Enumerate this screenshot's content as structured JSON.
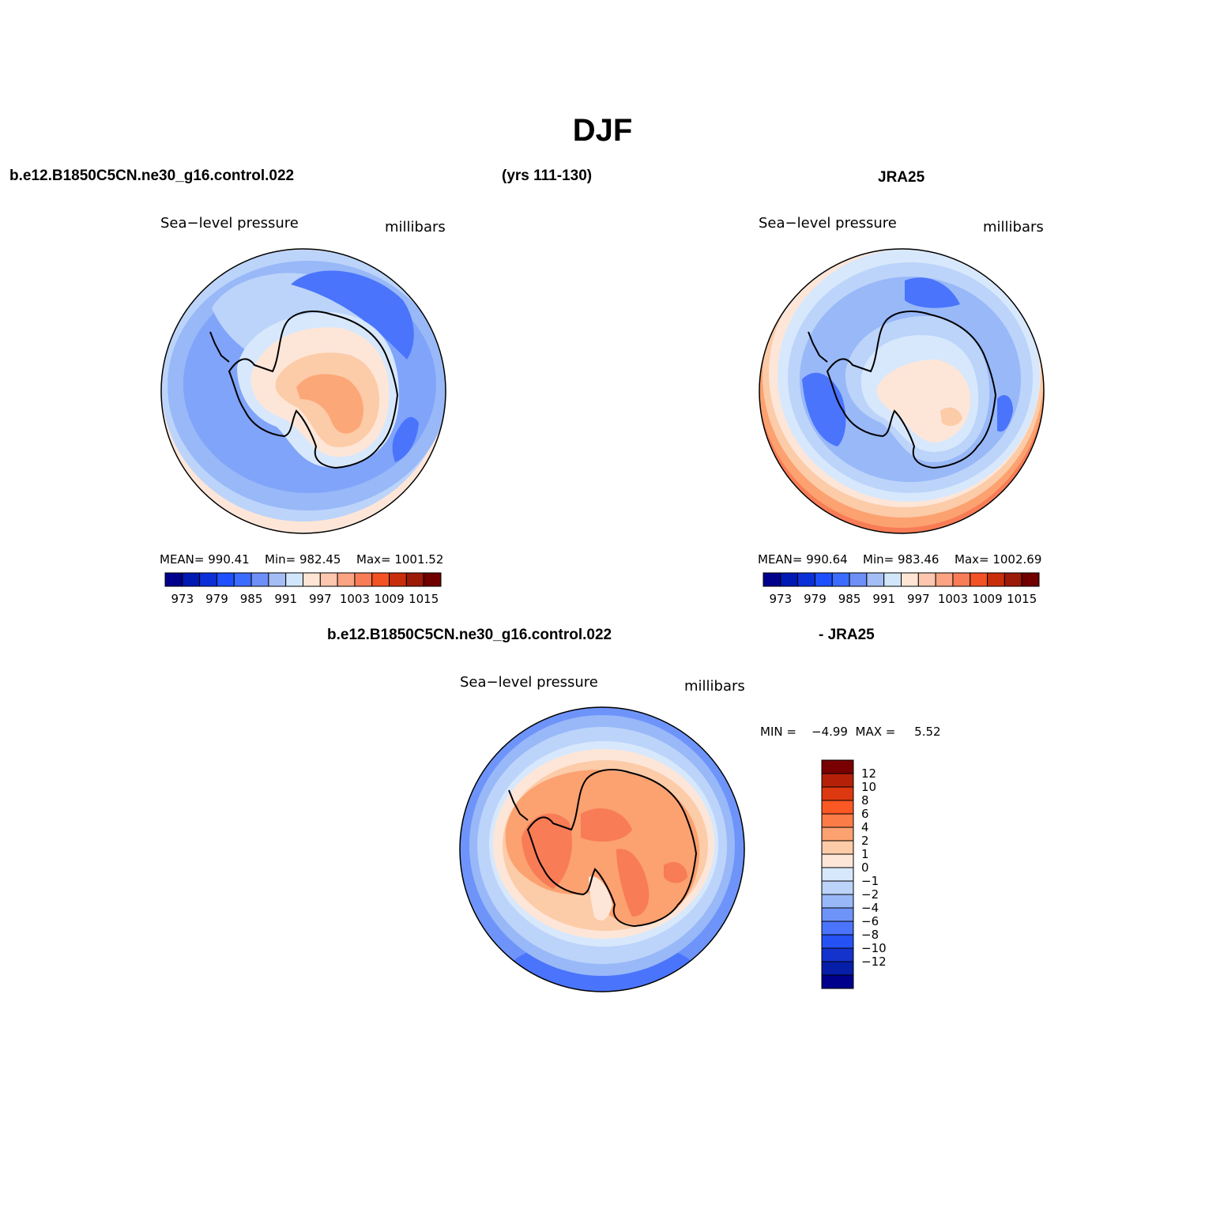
{
  "title": "DJF",
  "panels": [
    {
      "id": "model",
      "case_label": "b.e12.B1850C5CN.ne30_g16.control.022",
      "years_label": "(yrs 111-130)",
      "field_label": "Sea−level pressure",
      "units_label": "millibars",
      "stats": {
        "mean": "MEAN= 990.41",
        "min": "Min= 982.45",
        "max": "Max= 1001.52"
      }
    },
    {
      "id": "obs",
      "case_label": "JRA25",
      "field_label": "Sea−level pressure",
      "units_label": "millibars",
      "stats": {
        "mean": "MEAN= 990.64",
        "min": "Min= 983.46",
        "max": "Max= 1002.69"
      }
    },
    {
      "id": "diff",
      "case_label": "b.e12.B1850C5CN.ne30_g16.control.022",
      "case_label_suffix": "- JRA25",
      "field_label": "Sea−level pressure",
      "units_label": "millibars",
      "stats": {
        "minmax": "MIN =    −4.99  MAX =     5.52"
      }
    }
  ],
  "colorbar_abs": {
    "colors": [
      "#00008c",
      "#0018b4",
      "#0c30d8",
      "#1e50ff",
      "#3c6cff",
      "#6e8ff8",
      "#a4bdf5",
      "#d2e6fb",
      "#fee5d4",
      "#fcc7ae",
      "#fba382",
      "#f87c56",
      "#f35225",
      "#c82e0c",
      "#9c1a08",
      "#700000"
    ],
    "tick_labels": [
      "973",
      "979",
      "985",
      "991",
      "997",
      "1003",
      "1009",
      "1015"
    ]
  },
  "colorbar_diff": {
    "colors": [
      "#780000",
      "#b42008",
      "#de3810",
      "#fc5824",
      "#fc7c48",
      "#fca170",
      "#fccba8",
      "#fde6d8",
      "#d8e8fc",
      "#bcd4fa",
      "#98b8f8",
      "#6e94fa",
      "#4a74fc",
      "#2452f4",
      "#1432cc",
      "#061ea8",
      "#00008c"
    ],
    "tick_labels": [
      "12",
      "10",
      "8",
      "6",
      "4",
      "2",
      "1",
      "0",
      "−1",
      "−2",
      "−4",
      "−6",
      "−8",
      "−10",
      "−12"
    ]
  }
}
